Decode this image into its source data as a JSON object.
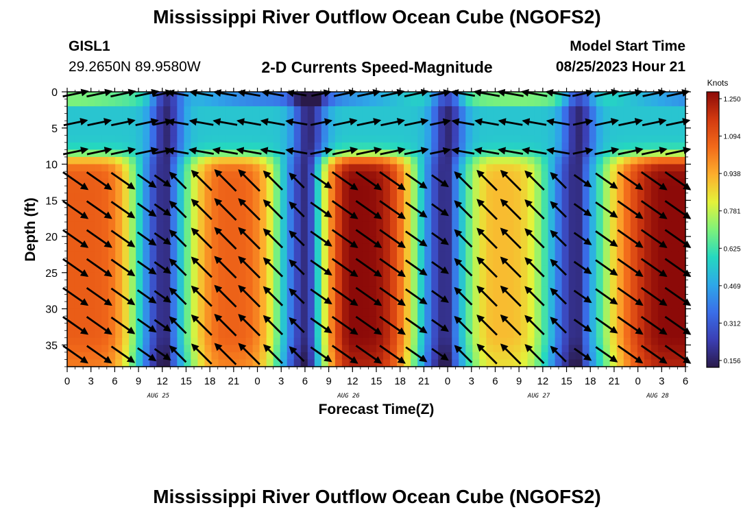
{
  "header": {
    "title": "Mississippi River Outflow Ocean Cube (NGOFS2)",
    "station_id": "GISL1",
    "station_coords": "29.2650N  89.9580W",
    "subtitle": "2-D Currents Speed-Magnitude",
    "model_start_label": "Model Start Time",
    "model_start_value": "08/25/2023 Hour 21"
  },
  "footer": {
    "title_repeat": "Mississippi River Outflow Ocean Cube (NGOFS2)"
  },
  "colors": {
    "colormap": [
      "#2a1a4a",
      "#3b3fb4",
      "#3a6ee8",
      "#2ea8e8",
      "#25d8c0",
      "#7ef27a",
      "#e4f23a",
      "#fdae2d",
      "#f26a1a",
      "#d23a10",
      "#8c0a08"
    ]
  },
  "chart_data": {
    "type": "heatmap",
    "xlabel": "Forecast Time(Z)",
    "ylabel": "Depth (ft)",
    "x_tick_labels": [
      "0",
      "3",
      "6",
      "9",
      "12",
      "15",
      "18",
      "21",
      "0",
      "3",
      "6",
      "9",
      "12",
      "15",
      "18",
      "21",
      "0",
      "3",
      "6",
      "9",
      "12",
      "15",
      "18",
      "21",
      "0",
      "3",
      "6"
    ],
    "x_hours": [
      0,
      3,
      6,
      9,
      12,
      15,
      18,
      21,
      24,
      27,
      30,
      33,
      36,
      39,
      42,
      45,
      48,
      51,
      54,
      57,
      60,
      63,
      66,
      69,
      72,
      75,
      78
    ],
    "xlim_hours": [
      0,
      78
    ],
    "date_labels": [
      {
        "label": "AUG 25",
        "hour": 11.5
      },
      {
        "label": "AUG 26",
        "hour": 35.5
      },
      {
        "label": "AUG 27",
        "hour": 59.5
      },
      {
        "label": "AUG 28",
        "hour": 74.5
      }
    ],
    "y_ticks": [
      0,
      5,
      10,
      15,
      20,
      25,
      30,
      35
    ],
    "ylim": [
      0,
      38
    ],
    "y_inverted": true,
    "colorbar": {
      "title": "Knots",
      "ticks": [
        "1.250",
        "1.094",
        "0.938",
        "0.781",
        "0.625",
        "0.469",
        "0.312",
        "0.156"
      ],
      "range": [
        0.156,
        1.25
      ]
    },
    "speed_minima_hours": [
      12.5,
      30.5,
      48,
      64.5
    ],
    "speed_maxima_hours": [
      2,
      20,
      36,
      54,
      75.5
    ],
    "speed_peaks_knots": [
      1.06,
      1.05,
      1.25,
      0.9,
      1.25
    ],
    "upper_layer_speed_knots": 0.55,
    "layer_boundary_depth_ft": 9,
    "vector_rows_ft": [
      0,
      4,
      8,
      12,
      16,
      20,
      24,
      28,
      32,
      36
    ],
    "vector_cols_hours": [
      1,
      4,
      7,
      10,
      12,
      14,
      17,
      20,
      23,
      26,
      29,
      32,
      35,
      38,
      41,
      44,
      47,
      50,
      53,
      56,
      59,
      62,
      65,
      68,
      71,
      74,
      77
    ]
  }
}
